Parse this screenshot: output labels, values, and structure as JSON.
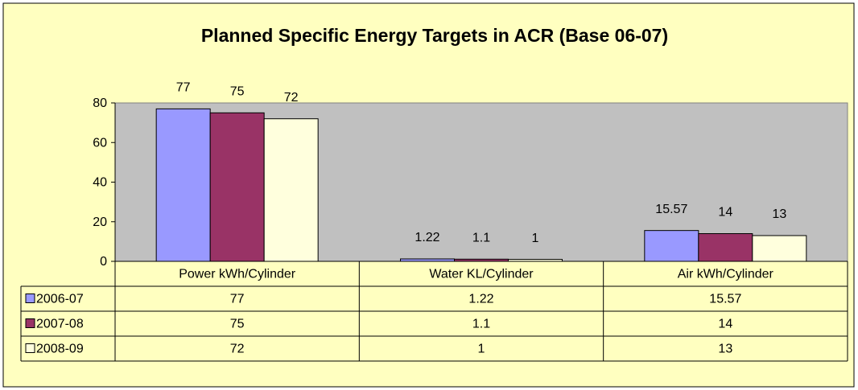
{
  "chart_data": {
    "type": "bar",
    "title": "Planned Specific Energy Targets in ACR (Base 06-07)",
    "categories": [
      "Power kWh/Cylinder",
      "Water KL/Cylinder",
      "Air kWh/Cylinder"
    ],
    "series": [
      {
        "name": "2006-07",
        "color": "#9999FF",
        "values": [
          77,
          1.22,
          15.57
        ]
      },
      {
        "name": "2007-08",
        "color": "#993366",
        "values": [
          75,
          1.1,
          14
        ]
      },
      {
        "name": "2008-09",
        "color": "#FFFFDD",
        "values": [
          72,
          1,
          13
        ]
      }
    ],
    "ylim": [
      0,
      80
    ],
    "yticks": [
      0,
      20,
      40,
      60,
      80
    ]
  }
}
